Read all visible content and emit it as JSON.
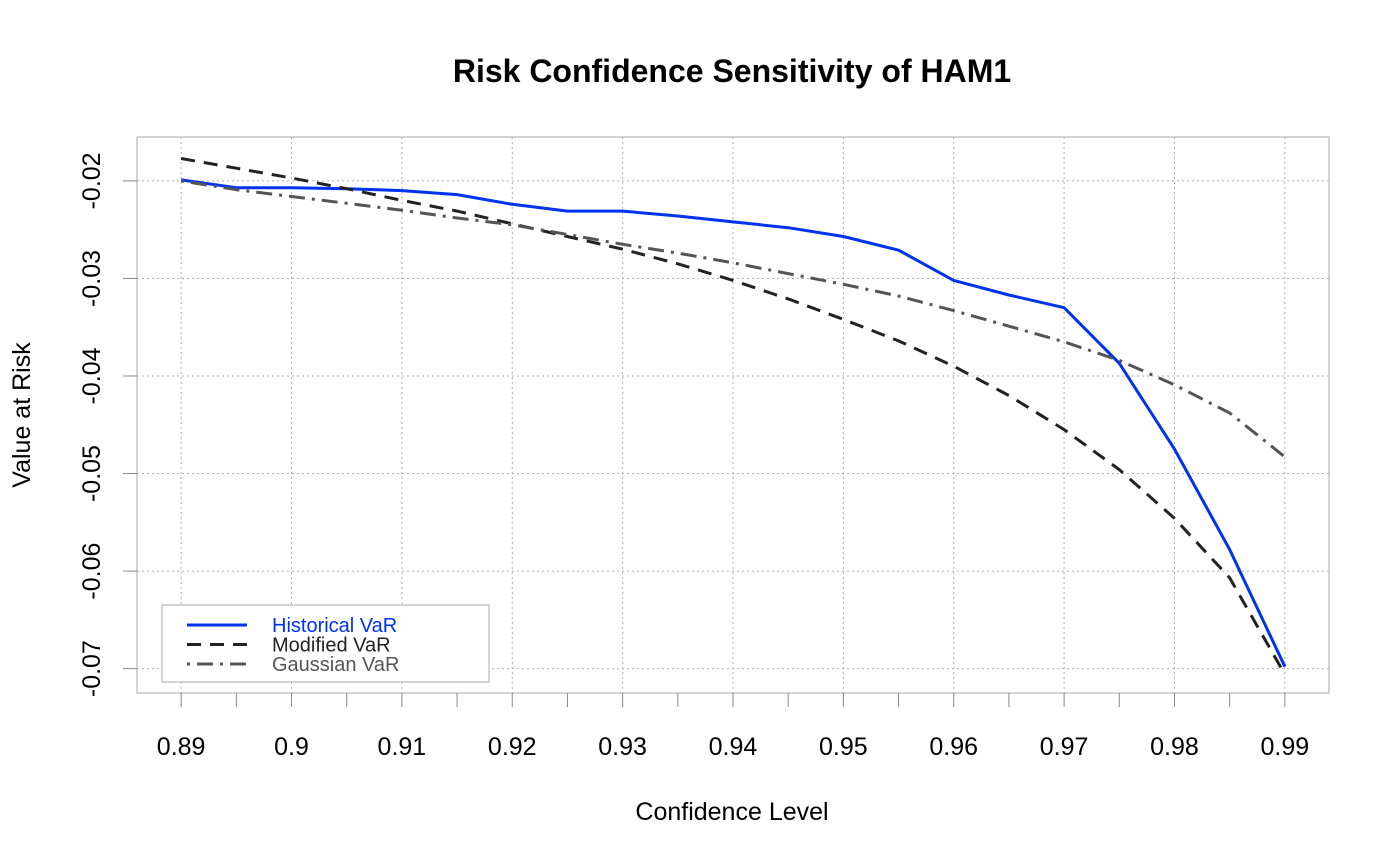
{
  "chart_data": {
    "type": "line",
    "title": "Risk Confidence Sensitivity of HAM1",
    "xlabel": "Confidence Level",
    "ylabel": "Value at Risk",
    "xlim": [
      0.886,
      0.994
    ],
    "ylim": [
      -0.0725,
      -0.0155
    ],
    "x_ticks": [
      0.89,
      0.9,
      0.91,
      0.92,
      0.93,
      0.94,
      0.95,
      0.96,
      0.97,
      0.98,
      0.99
    ],
    "x_tick_labels": [
      "0.89",
      "0.9",
      "0.91",
      "0.92",
      "0.93",
      "0.94",
      "0.95",
      "0.96",
      "0.97",
      "0.98",
      "0.99"
    ],
    "x_minor_ticks": [
      0.895,
      0.905,
      0.915,
      0.925,
      0.935,
      0.945,
      0.955,
      0.965,
      0.975,
      0.985
    ],
    "y_ticks": [
      -0.07,
      -0.06,
      -0.05,
      -0.04,
      -0.03,
      -0.02
    ],
    "y_tick_labels": [
      "-0.07",
      "-0.06",
      "-0.05",
      "-0.04",
      "-0.03",
      "-0.02"
    ],
    "grid": true,
    "legend_position": "bottom-left",
    "x": [
      0.89,
      0.895,
      0.9,
      0.905,
      0.91,
      0.915,
      0.92,
      0.925,
      0.93,
      0.935,
      0.94,
      0.945,
      0.95,
      0.955,
      0.96,
      0.965,
      0.97,
      0.975,
      0.98,
      0.985,
      0.99
    ],
    "series": [
      {
        "name": "Historical VaR",
        "color": "#0033ee",
        "dash": "solid",
        "values": [
          -0.0199,
          -0.0207,
          -0.0207,
          -0.0208,
          -0.021,
          -0.0214,
          -0.0224,
          -0.0231,
          -0.0231,
          -0.0236,
          -0.0242,
          -0.0248,
          -0.0257,
          -0.0271,
          -0.0302,
          -0.0317,
          -0.033,
          -0.0387,
          -0.0475,
          -0.0578,
          -0.0698
        ]
      },
      {
        "name": "Modified VaR",
        "color": "#222222",
        "dash": "dashed",
        "values": [
          -0.0177,
          -0.0187,
          -0.0197,
          -0.0208,
          -0.022,
          -0.0231,
          -0.0244,
          -0.0257,
          -0.027,
          -0.0285,
          -0.0302,
          -0.0321,
          -0.0342,
          -0.0364,
          -0.039,
          -0.042,
          -0.0455,
          -0.0496,
          -0.0546,
          -0.0607,
          -0.0706
        ]
      },
      {
        "name": "Gaussian VaR",
        "color": "#555555",
        "dash": "dotdash",
        "values": [
          -0.02,
          -0.0209,
          -0.0216,
          -0.0223,
          -0.023,
          -0.0238,
          -0.0245,
          -0.0255,
          -0.0265,
          -0.0274,
          -0.0284,
          -0.0295,
          -0.0306,
          -0.0318,
          -0.0333,
          -0.0349,
          -0.0365,
          -0.0384,
          -0.0409,
          -0.0438,
          -0.0483
        ]
      }
    ]
  }
}
